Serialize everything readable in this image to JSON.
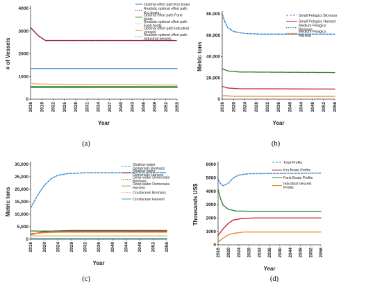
{
  "chart_data": [
    {
      "type": "line",
      "panel_label": "(a)",
      "xlabel": "Year",
      "ylabel": "# of Vessels",
      "xlim": [
        2016,
        2055
      ],
      "ylim": [
        0,
        4000
      ],
      "y_ticks": [
        "0",
        "1000",
        "2000",
        "3000",
        "4000"
      ],
      "x_ticks": [
        "2016",
        "2019",
        "2022",
        "2025",
        "2028",
        "2031",
        "2034",
        "2037",
        "2040",
        "2043",
        "2046",
        "2049",
        "2052",
        "2055"
      ],
      "legend_position": "top-right",
      "grid": false,
      "series": [
        {
          "name": "Optimal effort path Kru boats",
          "color": "#3b8fd4",
          "style": "solid",
          "points": [
            [
              2016,
              1350
            ],
            [
              2055,
              1350
            ]
          ]
        },
        {
          "name": "Realistic optimal effort path Kru boats",
          "color": "#8b1a3a",
          "style": "dotted",
          "points": [
            [
              2016,
              3150
            ],
            [
              2018,
              2800
            ],
            [
              2020,
              2580
            ],
            [
              2025,
              2580
            ],
            [
              2055,
              2580
            ]
          ]
        },
        {
          "name": "Optimal effort path Fanti boats",
          "color": "#2e8b3e",
          "style": "solid",
          "points": [
            [
              2016,
              520
            ],
            [
              2055,
              520
            ]
          ]
        },
        {
          "name": "Realistic optimal effort path Fanti boats",
          "color": "#e8a96a",
          "style": "dotted",
          "points": [
            [
              2016,
              680
            ],
            [
              2020,
              660
            ],
            [
              2055,
              620
            ]
          ]
        },
        {
          "name": "Optimal effort path Industrial vessels",
          "color": "#e87d2a",
          "style": "solid",
          "points": [
            [
              2016,
              560
            ],
            [
              2055,
              560
            ]
          ]
        },
        {
          "name": "Realistic optimal effort path Industrial vessels",
          "color": "#4aa35a",
          "style": "dotted",
          "points": [
            [
              2016,
              560
            ],
            [
              2055,
              550
            ]
          ]
        }
      ]
    },
    {
      "type": "line",
      "panel_label": "(b)",
      "xlabel": "Year",
      "ylabel": "Metric tons",
      "xlim": [
        2016,
        2056
      ],
      "ylim": [
        0,
        80000
      ],
      "y_ticks": [
        "0",
        "20,000",
        "40,000",
        "60,000",
        "80,000"
      ],
      "x_ticks": [
        "2016",
        "2020",
        "2024",
        "2028",
        "2032",
        "2036",
        "2040",
        "2044",
        "2048",
        "2052",
        "2056"
      ],
      "legend_position": "top-right",
      "grid": false,
      "series": [
        {
          "name": "Small Pelagics Biomass",
          "color": "#3b8fd4",
          "style": "dashed",
          "points": [
            [
              2016,
              80000
            ],
            [
              2017,
              72000
            ],
            [
              2018,
              67000
            ],
            [
              2020,
              63500
            ],
            [
              2024,
              61500
            ],
            [
              2030,
              61000
            ],
            [
              2056,
              61000
            ]
          ]
        },
        {
          "name": "Small Pelagics Harvest",
          "color": "#c62838",
          "style": "solid",
          "points": [
            [
              2016,
              12000
            ],
            [
              2018,
              10500
            ],
            [
              2022,
              9800
            ],
            [
              2056,
              9500
            ]
          ]
        },
        {
          "name": "Medium Pelagics Biomass",
          "color": "#2e7d32",
          "style": "dotted",
          "points": [
            [
              2016,
              28500
            ],
            [
              2018,
              26500
            ],
            [
              2022,
              25500
            ],
            [
              2056,
              25000
            ]
          ]
        },
        {
          "name": "Medium Pelagics Harvest",
          "color": "#e8872a",
          "style": "solid",
          "points": [
            [
              2016,
              3200
            ],
            [
              2020,
              2800
            ],
            [
              2056,
              2700
            ]
          ]
        }
      ]
    },
    {
      "type": "line",
      "panel_label": "(c)",
      "xlabel": "Year",
      "ylabel": "Metric tons",
      "xlim": [
        2016,
        2056
      ],
      "ylim": [
        0,
        30000
      ],
      "y_ticks": [
        "0",
        "5,000",
        "10,000",
        "15,000",
        "20,000",
        "25,000",
        "30,000"
      ],
      "x_ticks": [
        "2016",
        "2020",
        "2024",
        "2028",
        "2032",
        "2036",
        "2040",
        "2044",
        "2048",
        "2052",
        "2056"
      ],
      "legend_position": "top-right",
      "grid": false,
      "series": [
        {
          "name": "Shallow-water Demersals Biomass",
          "color": "#3b8fd4",
          "style": "dashed",
          "points": [
            [
              2016,
              12500
            ],
            [
              2018,
              17500
            ],
            [
              2020,
              21500
            ],
            [
              2022,
              24200
            ],
            [
              2024,
              25600
            ],
            [
              2027,
              26300
            ],
            [
              2032,
              26600
            ],
            [
              2056,
              26700
            ]
          ]
        },
        {
          "name": "Shallow-water Demersals Harvest",
          "color": "#c62838",
          "style": "solid",
          "points": [
            [
              2016,
              1800
            ],
            [
              2019,
              2800
            ],
            [
              2023,
              3300
            ],
            [
              2028,
              3500
            ],
            [
              2056,
              3500
            ]
          ]
        },
        {
          "name": "Deep-water Demersals Biomass",
          "color": "#2e7d32",
          "style": "dotted",
          "points": [
            [
              2016,
              3300
            ],
            [
              2020,
              3250
            ],
            [
              2056,
              3200
            ]
          ]
        },
        {
          "name": "Deep-water Demersals Harvest",
          "color": "#e8872a",
          "style": "solid",
          "points": [
            [
              2016,
              2200
            ],
            [
              2020,
              2600
            ],
            [
              2026,
              2800
            ],
            [
              2056,
              2800
            ]
          ]
        },
        {
          "name": "Crustacean Biomass",
          "color": "#e8a96a",
          "style": "dotted",
          "points": [
            [
              2016,
              1300
            ],
            [
              2056,
              1300
            ]
          ]
        },
        {
          "name": "Crustacean Harvest",
          "color": "#3bb0b5",
          "style": "solid",
          "points": [
            [
              2016,
              300
            ],
            [
              2056,
              300
            ]
          ]
        }
      ]
    },
    {
      "type": "line",
      "panel_label": "(d)",
      "xlabel": "Year",
      "ylabel": "Thousands US$",
      "xlim": [
        2016,
        2056
      ],
      "ylim": [
        0,
        6000
      ],
      "y_ticks": [
        "0",
        "1000",
        "2000",
        "3000",
        "4000",
        "5000",
        "6000"
      ],
      "x_ticks": [
        "2016",
        "2020",
        "2024",
        "2028",
        "2032",
        "2036",
        "2040",
        "2044",
        "2048",
        "2052",
        "2056"
      ],
      "legend_position": "top-right",
      "grid": false,
      "series": [
        {
          "name": "Total Profits",
          "color": "#3b8fd4",
          "style": "dashed",
          "points": [
            [
              2016,
              4900
            ],
            [
              2017,
              4550
            ],
            [
              2018,
              4400
            ],
            [
              2020,
              4600
            ],
            [
              2022,
              5000
            ],
            [
              2024,
              5200
            ],
            [
              2028,
              5300
            ],
            [
              2056,
              5350
            ]
          ]
        },
        {
          "name": "Kru Boats Profits",
          "color": "#c62838",
          "style": "solid",
          "points": [
            [
              2016,
              700
            ],
            [
              2018,
              1200
            ],
            [
              2020,
              1600
            ],
            [
              2022,
              1850
            ],
            [
              2025,
              1950
            ],
            [
              2030,
              2000
            ],
            [
              2056,
              2000
            ]
          ]
        },
        {
          "name": "Fanti Boats Profits",
          "color": "#2e8b3e",
          "style": "solid",
          "points": [
            [
              2016,
              4150
            ],
            [
              2017,
              3400
            ],
            [
              2018,
              2950
            ],
            [
              2020,
              2650
            ],
            [
              2023,
              2520
            ],
            [
              2028,
              2500
            ],
            [
              2056,
              2500
            ]
          ]
        },
        {
          "name": "Industrial Vessels Profits",
          "color": "#e8872a",
          "style": "solid",
          "points": [
            [
              2016,
              200
            ],
            [
              2018,
              500
            ],
            [
              2020,
              750
            ],
            [
              2022,
              850
            ],
            [
              2026,
              950
            ],
            [
              2056,
              950
            ]
          ]
        }
      ]
    }
  ]
}
